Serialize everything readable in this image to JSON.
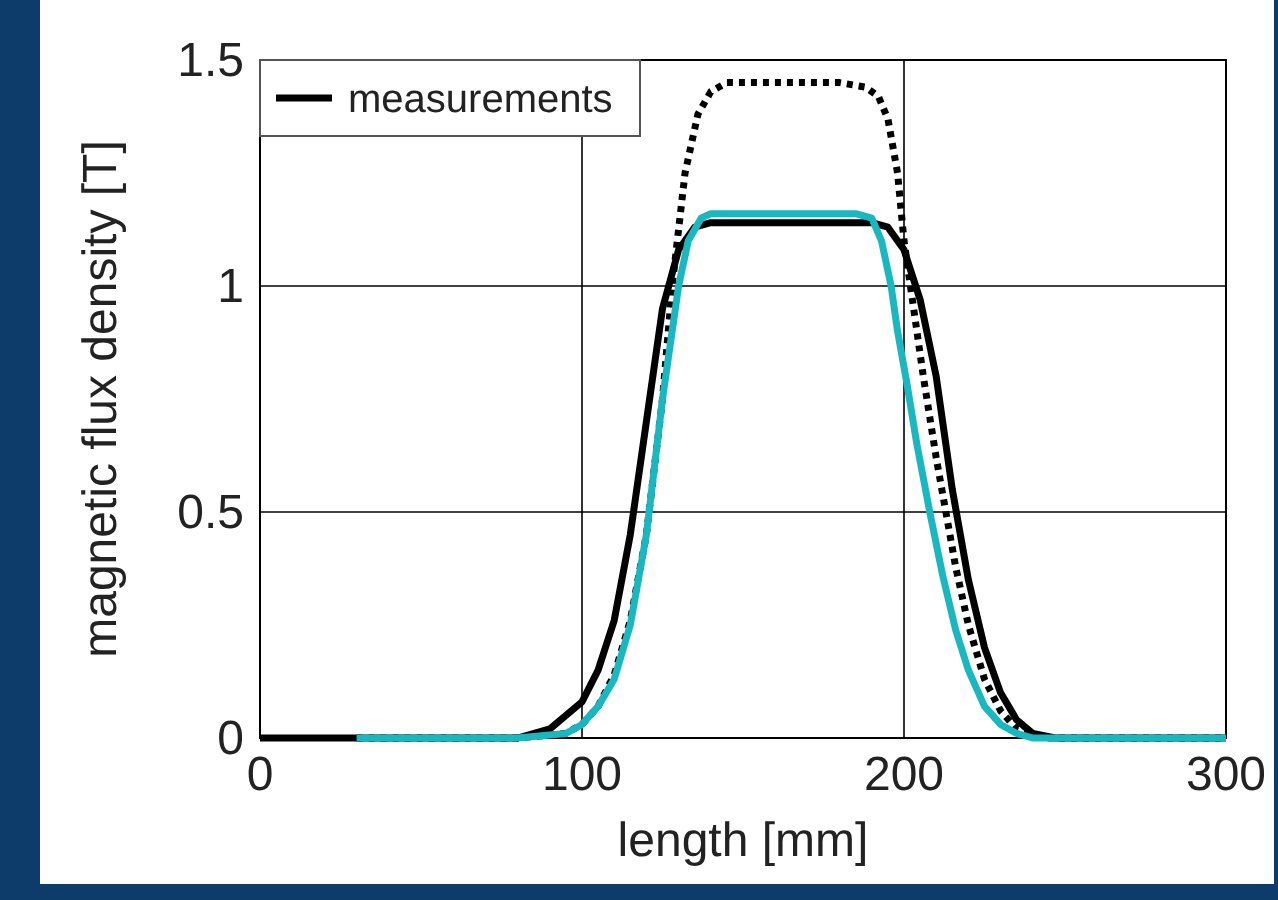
{
  "chart_data": {
    "type": "line",
    "xlabel": "length [mm]",
    "ylabel": "magnetic flux density [T]",
    "xlim": [
      0,
      300
    ],
    "ylim": [
      0,
      1.5
    ],
    "xticks": [
      0,
      100,
      200,
      300
    ],
    "yticks": [
      0,
      0.5,
      1,
      1.5
    ],
    "grid": true,
    "legend": "top left",
    "series": [
      {
        "name": "measurements",
        "color": "#000000",
        "line_style": "solid",
        "x": [
          0,
          30,
          60,
          80,
          90,
          100,
          105,
          110,
          115,
          120,
          125,
          130,
          135,
          140,
          150,
          170,
          190,
          195,
          200,
          205,
          210,
          215,
          220,
          225,
          230,
          235,
          240,
          247,
          260,
          300
        ],
        "values": [
          0,
          0,
          0,
          0,
          0.02,
          0.08,
          0.15,
          0.26,
          0.45,
          0.7,
          0.95,
          1.08,
          1.13,
          1.14,
          1.14,
          1.14,
          1.14,
          1.13,
          1.08,
          0.97,
          0.8,
          0.55,
          0.35,
          0.2,
          0.1,
          0.04,
          0.01,
          0,
          0,
          0
        ]
      },
      {
        "color": "#000000",
        "line_style": "dotted",
        "x": [
          30,
          60,
          80,
          95,
          100,
          105,
          110,
          115,
          120,
          125,
          128,
          132,
          136,
          140,
          145,
          160,
          180,
          188,
          192,
          195,
          198,
          200,
          203,
          206,
          210,
          213,
          216,
          220,
          225,
          230,
          235,
          240,
          245,
          260,
          300
        ],
        "values": [
          0,
          0,
          0,
          0.01,
          0.03,
          0.07,
          0.14,
          0.26,
          0.45,
          0.75,
          1,
          1.25,
          1.38,
          1.43,
          1.45,
          1.45,
          1.45,
          1.44,
          1.42,
          1.37,
          1.25,
          1.1,
          0.95,
          0.8,
          0.62,
          0.5,
          0.38,
          0.25,
          0.13,
          0.06,
          0.02,
          0.01,
          0,
          0,
          0
        ]
      },
      {
        "color": "#19b8c0",
        "line_style": "solid",
        "x": [
          30,
          60,
          80,
          95,
          100,
          105,
          110,
          115,
          120,
          125,
          130,
          133,
          137,
          140,
          150,
          170,
          185,
          190,
          193,
          196,
          198,
          201,
          204,
          208,
          212,
          216,
          220,
          225,
          230,
          235,
          240,
          260,
          300
        ],
        "values": [
          0,
          0,
          0,
          0.01,
          0.03,
          0.07,
          0.13,
          0.25,
          0.45,
          0.75,
          1,
          1.1,
          1.15,
          1.16,
          1.16,
          1.16,
          1.16,
          1.15,
          1.1,
          1,
          0.9,
          0.78,
          0.65,
          0.5,
          0.36,
          0.24,
          0.15,
          0.07,
          0.03,
          0.01,
          0,
          0,
          0
        ]
      }
    ]
  }
}
